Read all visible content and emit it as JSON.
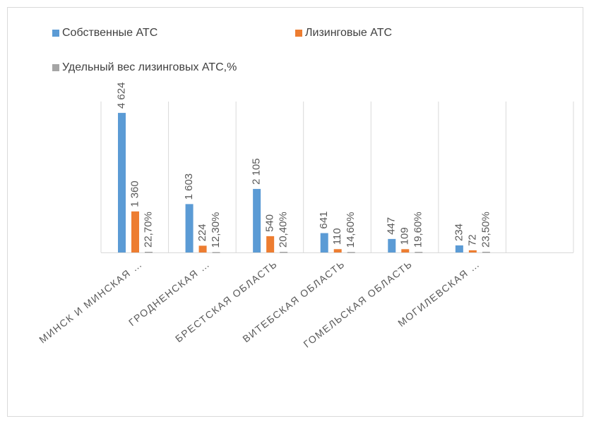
{
  "chart_data": {
    "type": "bar",
    "categories": [
      "МИНСК И МИНСКАЯ …",
      "ГРОДНЕНСКАЯ …",
      "БРЕСТСКАЯ ОБЛАСТЬ",
      "ВИТЕБСКАЯ ОБЛАСТЬ",
      "ГОМЕЛЬСКАЯ ОБЛАСТЬ",
      "МОГИЛЕВСКАЯ …",
      null
    ],
    "series": [
      {
        "name": "Собственные АТС",
        "color": "#5b9bd5",
        "values": [
          4624,
          1603,
          2105,
          641,
          447,
          234,
          null
        ],
        "value_labels": [
          "4 624",
          "1 603",
          "2 105",
          "641",
          "447",
          "234",
          null
        ]
      },
      {
        "name": "Лизинговые АТС",
        "color": "#ed7d31",
        "values": [
          1360,
          224,
          540,
          110,
          109,
          72,
          null
        ],
        "value_labels": [
          "1 360",
          "224",
          "540",
          "110",
          "109",
          "72",
          null
        ]
      },
      {
        "name": "Удельный вес лизинговых АТС,%",
        "color": "#a5a5a5",
        "values": [
          22.7,
          12.3,
          20.4,
          14.6,
          19.6,
          23.5,
          null
        ],
        "value_labels": [
          "22,70%",
          "12,30%",
          "20,40%",
          "14,60%",
          "19,60%",
          "23,50%",
          null
        ]
      }
    ],
    "ylim": [
      0,
      5000
    ],
    "grid": true
  }
}
